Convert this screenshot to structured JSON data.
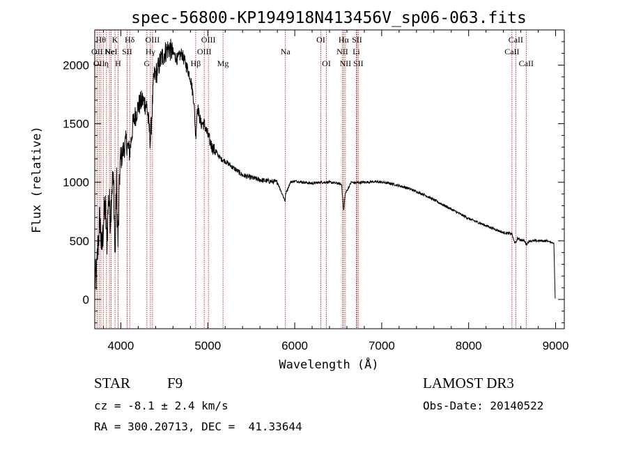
{
  "chart_data": {
    "type": "line",
    "title": "spec-56800-KP194918N413456V_sp06-063.fits",
    "xlabel": "Wavelength (Å)",
    "ylabel": "Flux (relative)",
    "xlim": [
      3700,
      9100
    ],
    "ylim": [
      -250,
      2300
    ],
    "xticks": [
      4000,
      5000,
      6000,
      7000,
      8000,
      9000
    ],
    "yticks": [
      0,
      500,
      1000,
      1500,
      2000
    ],
    "xtick_labels": [
      "4000",
      "5000",
      "6000",
      "7000",
      "8000",
      "9000"
    ],
    "ytick_labels": [
      "0",
      "500",
      "1000",
      "1500",
      "2000"
    ],
    "grid": false,
    "series": [
      {
        "name": "spectrum",
        "x": [
          3700,
          3720,
          3740,
          3760,
          3780,
          3800,
          3820,
          3840,
          3860,
          3880,
          3900,
          3920,
          3933,
          3950,
          3968,
          3990,
          4020,
          4060,
          4102,
          4140,
          4200,
          4250,
          4300,
          4340,
          4380,
          4420,
          4460,
          4500,
          4550,
          4600,
          4650,
          4700,
          4750,
          4800,
          4840,
          4861,
          4880,
          4920,
          4960,
          5000,
          5050,
          5100,
          5150,
          5200,
          5300,
          5400,
          5500,
          5600,
          5700,
          5800,
          5890,
          5895,
          5950,
          6000,
          6100,
          6200,
          6300,
          6400,
          6500,
          6540,
          6563,
          6580,
          6650,
          6700,
          6800,
          6900,
          7000,
          7100,
          7200,
          7300,
          7400,
          7500,
          7600,
          7700,
          7800,
          7900,
          8000,
          8100,
          8200,
          8300,
          8400,
          8498,
          8520,
          8542,
          8560,
          8600,
          8640,
          8662,
          8700,
          8800,
          8900,
          8980,
          8995,
          9000
        ],
        "values": [
          150,
          200,
          500,
          700,
          400,
          650,
          800,
          500,
          900,
          700,
          1000,
          950,
          300,
          1050,
          450,
          1150,
          1250,
          1350,
          1250,
          1500,
          1650,
          1700,
          1650,
          1350,
          1900,
          1950,
          2050,
          2100,
          2150,
          2100,
          2050,
          2100,
          2000,
          1900,
          1700,
          1380,
          1650,
          1500,
          1500,
          1400,
          1300,
          1250,
          1200,
          1180,
          1120,
          1060,
          1040,
          1020,
          1010,
          1000,
          840,
          900,
          1000,
          1010,
          1000,
          990,
          1000,
          1000,
          990,
          980,
          750,
          900,
          1000,
          995,
          1000,
          1005,
          1000,
          990,
          970,
          950,
          920,
          890,
          850,
          810,
          770,
          730,
          690,
          660,
          630,
          600,
          570,
          560,
          500,
          480,
          520,
          510,
          500,
          470,
          500,
          500,
          500,
          480,
          10,
          0
        ]
      }
    ],
    "line_markers": [
      {
        "wl": 3727,
        "label": "OII",
        "row": 2
      },
      {
        "wl": 3750,
        "label": "OII",
        "row": 3
      },
      {
        "wl": 3771,
        "label": "Hθ",
        "row": 1
      },
      {
        "wl": 3798,
        "label": "",
        "row": 0
      },
      {
        "wl": 3835,
        "label": "η",
        "row": 3
      },
      {
        "wl": 3869,
        "label": "Ne",
        "row": 2
      },
      {
        "wl": 3889,
        "label": "HeI",
        "row": 2
      },
      {
        "wl": 3933,
        "label": "K",
        "row": 1
      },
      {
        "wl": 3968,
        "label": "H",
        "row": 3
      },
      {
        "wl": 4072,
        "label": "SII",
        "row": 2
      },
      {
        "wl": 4102,
        "label": "Hδ",
        "row": 1
      },
      {
        "wl": 4300,
        "label": "G",
        "row": 3
      },
      {
        "wl": 4340,
        "label": "Hγ",
        "row": 2
      },
      {
        "wl": 4364,
        "label": "OIII",
        "row": 1
      },
      {
        "wl": 4861,
        "label": "Hβ",
        "row": 3
      },
      {
        "wl": 4959,
        "label": "OIII",
        "row": 2
      },
      {
        "wl": 5007,
        "label": "OIII",
        "row": 1
      },
      {
        "wl": 5175,
        "label": "Mg",
        "row": 3
      },
      {
        "wl": 5893,
        "label": "Na",
        "row": 2
      },
      {
        "wl": 6300,
        "label": "OI",
        "row": 1
      },
      {
        "wl": 6364,
        "label": "OI",
        "row": 3
      },
      {
        "wl": 6548,
        "label": "NII",
        "row": 2
      },
      {
        "wl": 6563,
        "label": "Hα",
        "row": 1
      },
      {
        "wl": 6583,
        "label": "NII",
        "row": 3
      },
      {
        "wl": 6708,
        "label": "Li",
        "row": 2
      },
      {
        "wl": 6716,
        "label": "SII",
        "row": 1
      },
      {
        "wl": 6731,
        "label": "SII",
        "row": 3
      },
      {
        "wl": 8498,
        "label": "CaII",
        "row": 2
      },
      {
        "wl": 8542,
        "label": "CaII",
        "row": 1
      },
      {
        "wl": 8662,
        "label": "CaII",
        "row": 3
      }
    ]
  },
  "info": {
    "object_class": "STAR",
    "subclass": "F9",
    "redshift_line": "cz = -8.1 ± 2.4 km/s",
    "coords_line": "RA = 300.20713, DEC =  41.33644",
    "survey": "LAMOST DR3",
    "obs_date_line": "Obs-Date: 20140522"
  },
  "colors": {
    "spectrum": "#000000",
    "marker_line": "#aa0000",
    "axes": "#000000"
  }
}
